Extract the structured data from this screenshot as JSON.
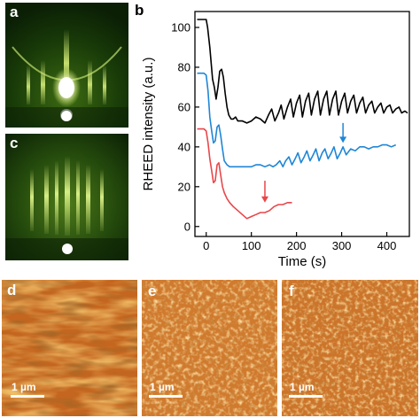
{
  "panels": {
    "a": {
      "letter": "a"
    },
    "b": {
      "letter": "b"
    },
    "c": {
      "letter": "c"
    },
    "d": {
      "letter": "d",
      "scale": "1 µm"
    },
    "e": {
      "letter": "e",
      "scale": "1 µm"
    },
    "f": {
      "letter": "f",
      "scale": "1 µm"
    }
  },
  "colors": {
    "black_series": "#000000",
    "blue_series": "#1f86d6",
    "red_series": "#e8474a",
    "afm_base": "#c0631d",
    "rheed_base": "#0b1f05"
  },
  "chart_data": {
    "type": "line",
    "title": "",
    "xlabel": "Time (s)",
    "ylabel": "RHEED intensity (a.u.)",
    "xlim": [
      -25,
      450
    ],
    "ylim": [
      -5,
      108
    ],
    "xticks": [
      0,
      100,
      200,
      300,
      400
    ],
    "yticks": [
      0,
      20,
      40,
      60,
      80,
      100
    ],
    "series": [
      {
        "color": "#000000",
        "x": [
          -20,
          -5,
          0,
          3,
          8,
          14,
          18,
          22,
          26,
          30,
          34,
          38,
          42,
          46,
          50,
          55,
          60,
          65,
          70,
          80,
          90,
          100,
          110,
          120,
          125,
          130,
          138,
          145,
          152,
          160,
          166,
          172,
          180,
          187,
          193,
          200,
          207,
          213,
          220,
          227,
          233,
          240,
          247,
          253,
          260,
          267,
          273,
          280,
          287,
          293,
          300,
          307,
          313,
          320,
          327,
          333,
          340,
          347,
          353,
          360,
          367,
          373,
          380,
          387,
          393,
          400,
          407,
          413,
          420,
          427,
          433,
          440,
          446
        ],
        "y": [
          104,
          104,
          104,
          100,
          90,
          74,
          70,
          64,
          70,
          78,
          79,
          75,
          67,
          60,
          56,
          54,
          54,
          55,
          53,
          53,
          52,
          53,
          55,
          54,
          53,
          52,
          56,
          59,
          53,
          57,
          61,
          54,
          60,
          64,
          55,
          62,
          66,
          55,
          63,
          67,
          56,
          64,
          68,
          56,
          64,
          68,
          56,
          64,
          68,
          56,
          63,
          67,
          57,
          63,
          66,
          57,
          62,
          65,
          57,
          61,
          63,
          57,
          60,
          62,
          57,
          60,
          61,
          57,
          59,
          60,
          57,
          58,
          57
        ]
      },
      {
        "color": "#1f86d6",
        "x": [
          -20,
          -5,
          0,
          4,
          8,
          12,
          16,
          20,
          24,
          28,
          32,
          36,
          40,
          46,
          52,
          58,
          64,
          72,
          80,
          90,
          100,
          110,
          120,
          130,
          140,
          148,
          155,
          163,
          170,
          176,
          183,
          190,
          197,
          203,
          210,
          217,
          223,
          230,
          237,
          243,
          250,
          257,
          263,
          270,
          277,
          283,
          290,
          297,
          303,
          310,
          320,
          330,
          340,
          350,
          360,
          370,
          380,
          390,
          400,
          410,
          420
        ],
        "y": [
          77,
          77,
          76,
          68,
          55,
          48,
          42,
          43,
          50,
          51,
          46,
          39,
          33,
          31,
          30,
          30,
          30,
          30,
          30,
          30,
          30,
          31,
          31,
          30,
          31,
          30,
          31,
          33,
          30,
          33,
          35,
          31,
          34,
          37,
          32,
          35,
          38,
          33,
          36,
          39,
          33,
          37,
          39,
          34,
          37,
          40,
          34,
          37,
          40,
          36,
          39,
          38,
          40,
          40,
          39,
          40,
          40,
          41,
          41,
          40,
          41
        ]
      },
      {
        "color": "#e8474a",
        "x": [
          -20,
          -5,
          0,
          4,
          8,
          12,
          16,
          20,
          24,
          28,
          32,
          36,
          40,
          46,
          52,
          60,
          70,
          80,
          90,
          100,
          110,
          120,
          130,
          140,
          150,
          160,
          170,
          180,
          190
        ],
        "y": [
          49,
          49,
          48,
          42,
          34,
          28,
          22,
          23,
          31,
          32,
          26,
          20,
          17,
          14,
          12,
          10,
          8,
          6,
          4,
          5,
          6,
          7,
          7,
          8,
          10,
          11,
          11,
          12,
          12
        ]
      }
    ],
    "annotations": [
      {
        "type": "arrow",
        "color": "#e8474a",
        "x": 130,
        "y_from": 23,
        "y_to": 12
      },
      {
        "type": "arrow",
        "color": "#1f86d6",
        "x": 303,
        "y_from": 52,
        "y_to": 42
      }
    ]
  }
}
